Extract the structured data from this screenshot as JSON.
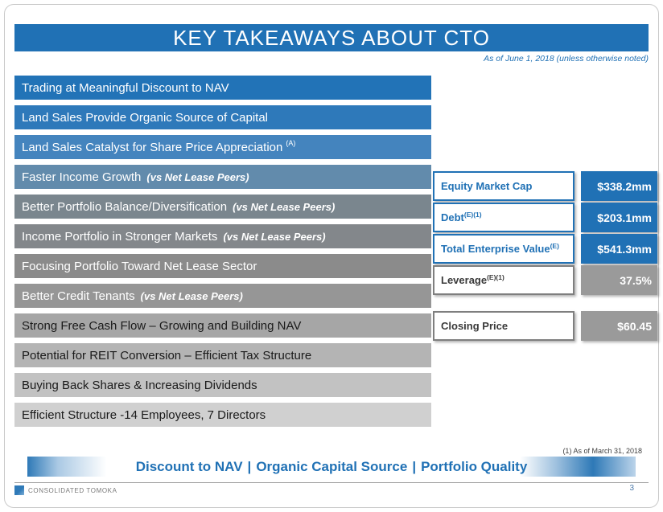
{
  "slide": {
    "title": "KEY TAKEAWAYS ABOUT CTO",
    "as_of_note": "As of June 1, 2018 (unless otherwise noted)",
    "footnote": "(1) As of March 31, 2018",
    "company": "CONSOLIDATED TOMOKA",
    "page_number": "3",
    "logo_icon": "company-logo"
  },
  "colors": {
    "primary_blue": "#2071B5",
    "gray_fill": "#9A9A9A",
    "gray_border": "#7F7F7F"
  },
  "takeaways": [
    {
      "text": "Trading at Meaningful Discount to NAV",
      "sup": "",
      "suffix": "",
      "bg": "#2273B7",
      "fg": "#FFFFFF"
    },
    {
      "text": "Land Sales Provide Organic Source of Capital",
      "sup": "",
      "suffix": "",
      "bg": "#2E79BA",
      "fg": "#FFFFFF"
    },
    {
      "text": "Land Sales Catalyst for Share Price Appreciation",
      "sup": "(A)",
      "suffix": "",
      "bg": "#4484BE",
      "fg": "#FFFFFF"
    },
    {
      "text": "Faster Income Growth",
      "sup": "",
      "suffix": "(vs Net Lease Peers)",
      "bg": "#628BAC",
      "fg": "#FFFFFF"
    },
    {
      "text": "Better Portfolio Balance/Diversification",
      "sup": "",
      "suffix": "(vs Net Lease Peers)",
      "bg": "#7A868E",
      "fg": "#FFFFFF"
    },
    {
      "text": "Income Portfolio in Stronger Markets",
      "sup": "",
      "suffix": "(vs Net Lease Peers)",
      "bg": "#83878B",
      "fg": "#FFFFFF"
    },
    {
      "text": "Focusing Portfolio Toward Net Lease Sector",
      "sup": "",
      "suffix": "",
      "bg": "#8B8B8B",
      "fg": "#FFFFFF"
    },
    {
      "text": "Better Credit Tenants",
      "sup": "",
      "suffix": "(vs Net Lease Peers)",
      "bg": "#969696",
      "fg": "#FFFFFF"
    },
    {
      "text": "Strong Free Cash Flow – Growing and Building NAV",
      "sup": "",
      "suffix": "",
      "bg": "#A6A6A6",
      "fg": "#1A1A1A"
    },
    {
      "text": "Potential for REIT Conversion – Efficient Tax Structure",
      "sup": "",
      "suffix": "",
      "bg": "#B4B4B4",
      "fg": "#1A1A1A"
    },
    {
      "text": "Buying Back Shares & Increasing Dividends",
      "sup": "",
      "suffix": "",
      "bg": "#C2C2C2",
      "fg": "#1A1A1A"
    },
    {
      "text": "Efficient Structure -14 Employees, 7 Directors",
      "sup": "",
      "suffix": "",
      "bg": "#D0D0D0",
      "fg": "#1A1A1A"
    }
  ],
  "stats": [
    {
      "label": "Equity Market Cap",
      "label_sup": "",
      "value": "$338.2mm",
      "theme": "blue"
    },
    {
      "label": "Debt",
      "label_sup": "(E)(1)",
      "value": "$203.1mm",
      "theme": "blue"
    },
    {
      "label": "Total Enterprise Value",
      "label_sup": "(E)",
      "value": "$541.3mm",
      "theme": "blue"
    },
    {
      "label": "Leverage",
      "label_sup": "(E)(1)",
      "value": "37.5%",
      "theme": "gray"
    },
    {
      "label": "Closing Price",
      "label_sup": "",
      "value": "$60.45",
      "theme": "gray"
    }
  ],
  "banner": {
    "items": [
      "Discount to NAV",
      "Organic Capital Source",
      "Portfolio Quality"
    ],
    "separator": "|"
  }
}
